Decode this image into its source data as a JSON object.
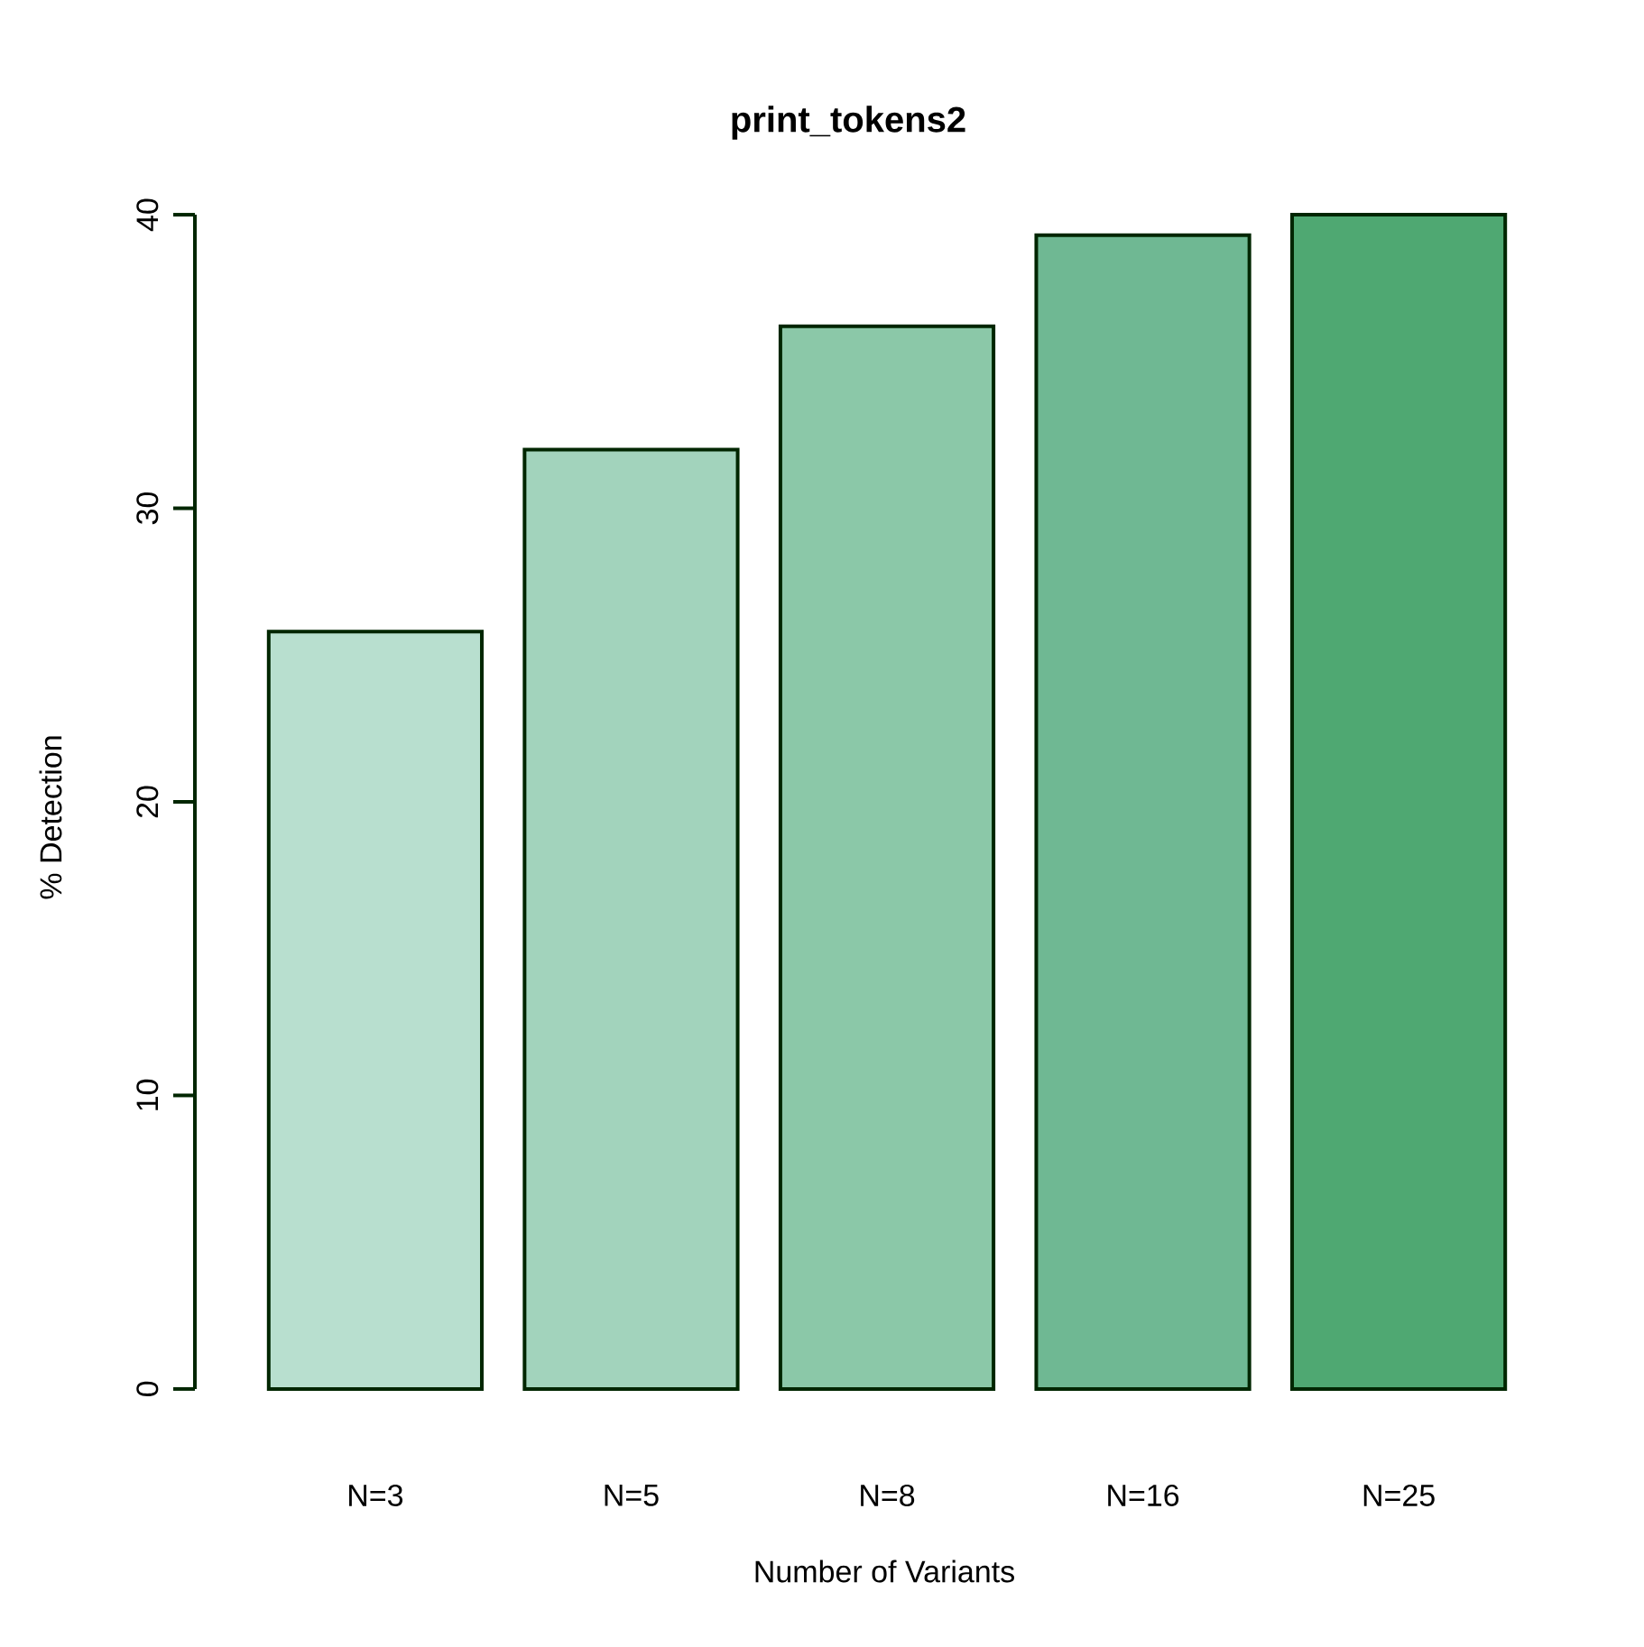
{
  "chart_data": {
    "type": "bar",
    "title": "print_tokens2",
    "xlabel": "Number of Variants",
    "ylabel": "% Detection",
    "categories": [
      "N=3",
      "N=5",
      "N=8",
      "N=16",
      "N=25"
    ],
    "values": [
      25.8,
      32.0,
      36.2,
      39.3,
      40.0
    ],
    "colors": [
      "#b8dfcf",
      "#a2d3bc",
      "#8bc8a8",
      "#6fb893",
      "#4fa872"
    ],
    "ylim": [
      0,
      40
    ],
    "yticks": [
      0,
      10,
      20,
      30,
      40
    ]
  }
}
